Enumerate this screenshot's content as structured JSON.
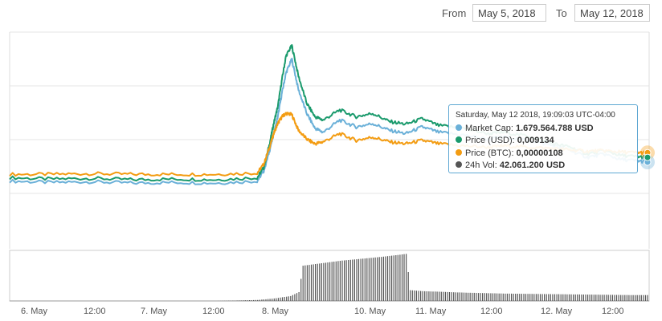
{
  "range": {
    "from_label": "From",
    "from_value": "May 5, 2018",
    "to_label": "To",
    "to_value": "May 12, 2018"
  },
  "tooltip": {
    "header": "Saturday, May 12 2018, 19:09:03 UTC-04:00",
    "rows": [
      {
        "label": "Market Cap:",
        "value": "1.679.564.788 USD",
        "color": "#6ab0d8"
      },
      {
        "label": "Price (USD):",
        "value": "0,009134",
        "color": "#1a9a6c"
      },
      {
        "label": "Price (BTC):",
        "value": "0,00000108",
        "color": "#f39c12"
      },
      {
        "label": "24h Vol:",
        "value": "42.061.200 USD",
        "color": "#555555"
      }
    ]
  },
  "colors": {
    "market_cap": "#6ab0d8",
    "price_usd": "#1a9a6c",
    "price_btc": "#f39c12",
    "volume": "#555555",
    "grid": "#e6e6e6"
  },
  "chart_data": {
    "type": "line",
    "x_tick_labels": [
      "6. May",
      "12:00",
      "7. May",
      "12:00",
      "8. May",
      "10. May",
      "11. May",
      "12:00",
      "12. May",
      "12:00"
    ],
    "grid": true,
    "series": [
      {
        "name": "Market Cap",
        "x": [
          5.0,
          5.5,
          6.0,
          6.5,
          7.0,
          7.5,
          8.0,
          8.08,
          8.15,
          8.2,
          8.25,
          8.3,
          8.35,
          8.42,
          8.5,
          8.6,
          8.7,
          8.8,
          9.0,
          9.2,
          9.4,
          9.6,
          9.8,
          10.0,
          10.2,
          10.5,
          10.8,
          11.0,
          11.3,
          11.6,
          11.8,
          12.0,
          12.2,
          12.4,
          12.6,
          12.75
        ],
        "values": [
          1.0,
          0.98,
          0.99,
          0.97,
          0.98,
          0.97,
          1.0,
          1.15,
          1.45,
          1.7,
          1.95,
          2.3,
          2.6,
          2.8,
          2.35,
          2.0,
          1.78,
          1.72,
          1.9,
          1.8,
          1.85,
          1.75,
          1.7,
          1.8,
          1.72,
          1.68,
          1.62,
          1.65,
          1.6,
          1.52,
          1.45,
          1.35,
          1.4,
          1.32,
          1.3,
          1.28
        ]
      },
      {
        "name": "Price (USD)",
        "x": [
          5.0,
          5.5,
          6.0,
          6.5,
          7.0,
          7.5,
          8.0,
          8.08,
          8.15,
          8.2,
          8.25,
          8.3,
          8.35,
          8.42,
          8.5,
          8.6,
          8.7,
          8.8,
          9.0,
          9.2,
          9.4,
          9.6,
          9.8,
          10.0,
          10.2,
          10.5,
          10.8,
          11.0,
          11.3,
          11.6,
          11.8,
          12.0,
          12.2,
          12.4,
          12.6,
          12.75
        ],
        "values": [
          1.05,
          1.03,
          1.04,
          1.02,
          1.03,
          1.02,
          1.05,
          1.2,
          1.55,
          1.85,
          2.1,
          2.5,
          2.85,
          3.0,
          2.55,
          2.15,
          1.95,
          1.9,
          2.05,
          1.95,
          2.0,
          1.88,
          1.84,
          1.92,
          1.82,
          1.78,
          1.7,
          1.72,
          1.66,
          1.55,
          1.5,
          1.4,
          1.45,
          1.38,
          1.36,
          1.35
        ]
      },
      {
        "name": "Price (BTC)",
        "x": [
          5.0,
          5.5,
          6.0,
          6.5,
          7.0,
          7.5,
          8.0,
          8.08,
          8.15,
          8.2,
          8.25,
          8.3,
          8.35,
          8.42,
          8.5,
          8.6,
          8.7,
          8.8,
          9.0,
          9.2,
          9.4,
          9.6,
          9.8,
          10.0,
          10.2,
          10.5,
          10.8,
          11.0,
          11.3,
          11.6,
          11.8,
          12.0,
          12.2,
          12.4,
          12.6,
          12.75
        ],
        "values": [
          1.1,
          1.1,
          1.11,
          1.1,
          1.1,
          1.1,
          1.12,
          1.25,
          1.5,
          1.7,
          1.85,
          1.95,
          2.0,
          1.98,
          1.75,
          1.62,
          1.55,
          1.58,
          1.7,
          1.6,
          1.65,
          1.58,
          1.55,
          1.6,
          1.55,
          1.52,
          1.5,
          1.52,
          1.5,
          1.48,
          1.46,
          1.44,
          1.45,
          1.43,
          1.42,
          1.42
        ]
      },
      {
        "name": "24h Vol",
        "x": [
          5.0,
          6.0,
          7.0,
          7.5,
          8.0,
          8.2,
          8.4,
          8.5,
          8.55,
          9.0,
          9.5,
          9.8,
          9.85,
          10.0,
          10.5,
          11.0,
          11.5,
          12.0,
          12.5,
          12.75
        ],
        "values": [
          0.0,
          0.0,
          0.0,
          0.0,
          0.02,
          0.05,
          0.1,
          0.18,
          0.72,
          0.82,
          0.9,
          0.96,
          0.22,
          0.2,
          0.17,
          0.15,
          0.14,
          0.13,
          0.12,
          0.12
        ]
      }
    ]
  }
}
